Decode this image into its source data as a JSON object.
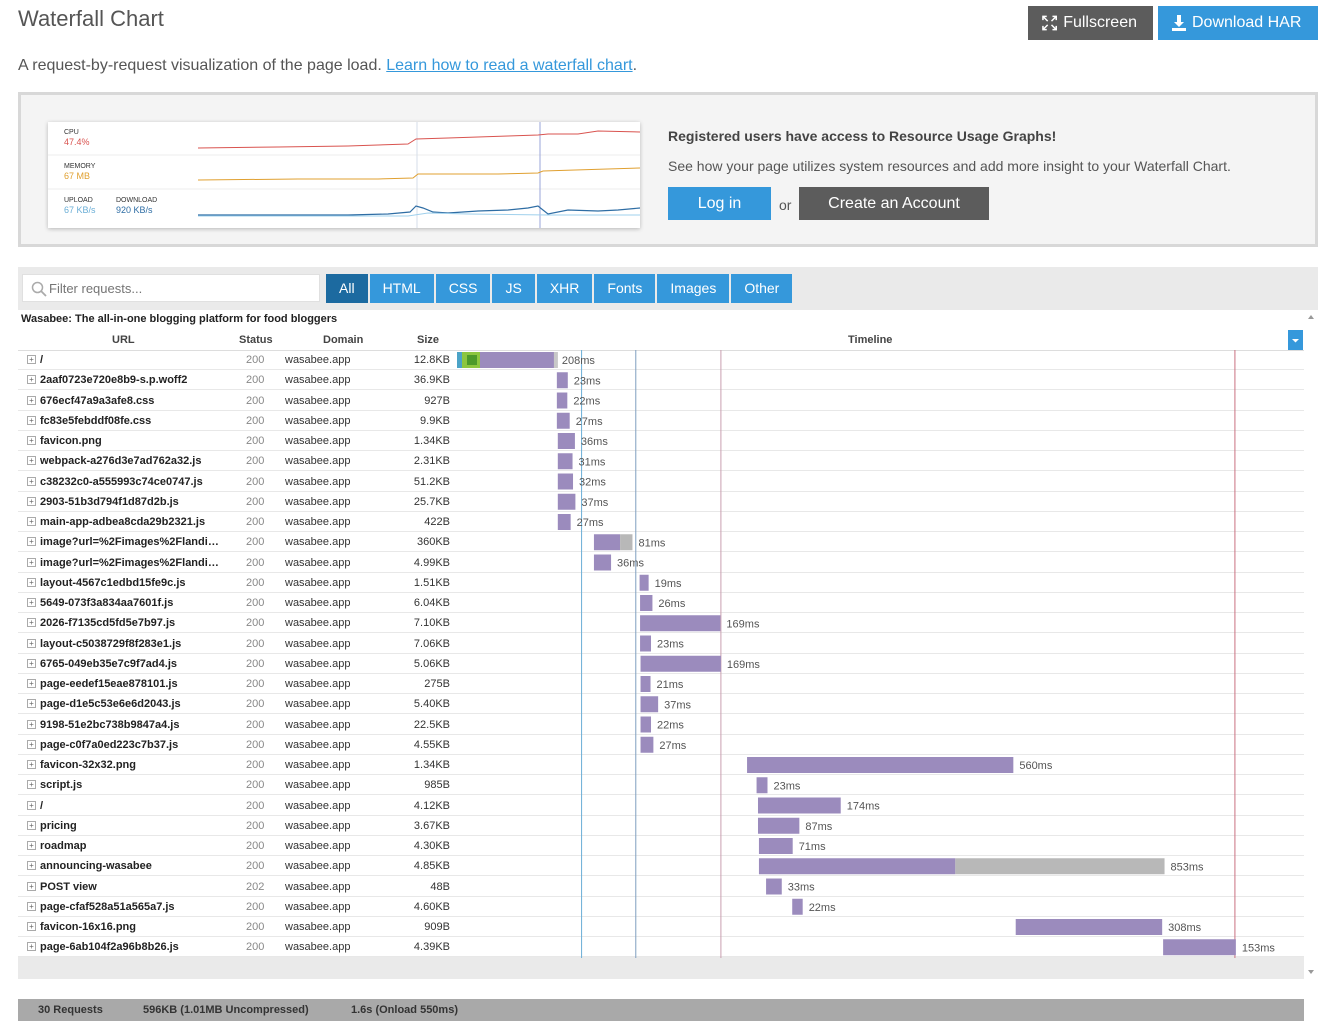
{
  "header": {
    "title": "Waterfall Chart",
    "fullscreen_label": "Fullscreen",
    "download_label": "Download HAR"
  },
  "subtitle": {
    "text": "A request-by-request visualization of the page load. ",
    "link": "Learn how to read a waterfall chart",
    "end": "."
  },
  "promo": {
    "graph": {
      "cpu_label": "CPU",
      "cpu_value": "47.4%",
      "memory_label": "MEMORY",
      "memory_value": "67 MB",
      "upload_label": "UPLOAD",
      "upload_value": "67 KB/s",
      "download_label": "DOWNLOAD",
      "download_value": "920 KB/s"
    },
    "heading": "Registered users have access to Resource Usage Graphs!",
    "text": "See how your page utilizes system resources and add more insight to your Waterfall Chart.",
    "login_label": "Log in",
    "or_label": "or",
    "create_label": "Create an Account"
  },
  "filter": {
    "placeholder": "Filter requests..."
  },
  "tabs": [
    "All",
    "HTML",
    "CSS",
    "JS",
    "XHR",
    "Fonts",
    "Images",
    "Other"
  ],
  "active_tab": "All",
  "table": {
    "site_title": "Wasabee: The all-in-one blogging platform for food bloggers",
    "columns": {
      "url": "URL",
      "status": "Status",
      "domain": "Domain",
      "size": "Size",
      "timeline": "Timeline"
    },
    "rows": [
      {
        "url": "/",
        "status": "200",
        "domain": "wasabee.app",
        "size": "12.8KB",
        "start": 0,
        "dur": 208,
        "wait": 0,
        "label": "208ms",
        "first": true
      },
      {
        "url": "2aaf0723e720e8b9-s.p.woff2",
        "status": "200",
        "domain": "wasabee.app",
        "size": "36.9KB",
        "start": 210,
        "dur": 23,
        "wait": 0,
        "label": "23ms"
      },
      {
        "url": "676ecf47a9a3afe8.css",
        "status": "200",
        "domain": "wasabee.app",
        "size": "927B",
        "start": 210,
        "dur": 22,
        "wait": 0,
        "label": "22ms"
      },
      {
        "url": "fc83e5febddf08fe.css",
        "status": "200",
        "domain": "wasabee.app",
        "size": "9.9KB",
        "start": 210,
        "dur": 27,
        "wait": 0,
        "label": "27ms"
      },
      {
        "url": "favicon.png",
        "status": "200",
        "domain": "wasabee.app",
        "size": "1.34KB",
        "start": 212,
        "dur": 36,
        "wait": 0,
        "label": "36ms"
      },
      {
        "url": "webpack-a276d3e7ad762a32.js",
        "status": "200",
        "domain": "wasabee.app",
        "size": "2.31KB",
        "start": 212,
        "dur": 31,
        "wait": 0,
        "label": "31ms"
      },
      {
        "url": "c38232c0-a555993c74ce0747.js",
        "status": "200",
        "domain": "wasabee.app",
        "size": "51.2KB",
        "start": 212,
        "dur": 32,
        "wait": 0,
        "label": "32ms"
      },
      {
        "url": "2903-51b3d794f1d87d2b.js",
        "status": "200",
        "domain": "wasabee.app",
        "size": "25.7KB",
        "start": 212,
        "dur": 37,
        "wait": 0,
        "label": "37ms"
      },
      {
        "url": "main-app-adbea8cda29b2321.js",
        "status": "200",
        "domain": "wasabee.app",
        "size": "422B",
        "start": 212,
        "dur": 27,
        "wait": 0,
        "label": "27ms"
      },
      {
        "url": "image?url=%2Fimages%2Flanding...",
        "status": "200",
        "domain": "wasabee.app",
        "size": "360KB",
        "start": 288,
        "dur": 55,
        "wait": 26,
        "label": "81ms"
      },
      {
        "url": "image?url=%2Fimages%2Flanding...",
        "status": "200",
        "domain": "wasabee.app",
        "size": "4.99KB",
        "start": 288,
        "dur": 36,
        "wait": 0,
        "label": "36ms"
      },
      {
        "url": "layout-4567c1edbd15fe9c.js",
        "status": "200",
        "domain": "wasabee.app",
        "size": "1.51KB",
        "start": 384,
        "dur": 19,
        "wait": 0,
        "label": "19ms"
      },
      {
        "url": "5649-073f3a834aa7601f.js",
        "status": "200",
        "domain": "wasabee.app",
        "size": "6.04KB",
        "start": 385,
        "dur": 26,
        "wait": 0,
        "label": "26ms"
      },
      {
        "url": "2026-f7135cd5fd5e7b97.js",
        "status": "200",
        "domain": "wasabee.app",
        "size": "7.10KB",
        "start": 385,
        "dur": 169,
        "wait": 0,
        "label": "169ms"
      },
      {
        "url": "layout-c5038729f8f283e1.js",
        "status": "200",
        "domain": "wasabee.app",
        "size": "7.06KB",
        "start": 385,
        "dur": 23,
        "wait": 0,
        "label": "23ms"
      },
      {
        "url": "6765-049eb35e7c9f7ad4.js",
        "status": "200",
        "domain": "wasabee.app",
        "size": "5.06KB",
        "start": 386,
        "dur": 169,
        "wait": 0,
        "label": "169ms"
      },
      {
        "url": "page-eedef15eae878101.js",
        "status": "200",
        "domain": "wasabee.app",
        "size": "275B",
        "start": 386,
        "dur": 21,
        "wait": 0,
        "label": "21ms"
      },
      {
        "url": "page-d1e5c53e6e6d2043.js",
        "status": "200",
        "domain": "wasabee.app",
        "size": "5.40KB",
        "start": 386,
        "dur": 37,
        "wait": 0,
        "label": "37ms"
      },
      {
        "url": "9198-51e2bc738b9847a4.js",
        "status": "200",
        "domain": "wasabee.app",
        "size": "22.5KB",
        "start": 386,
        "dur": 22,
        "wait": 0,
        "label": "22ms"
      },
      {
        "url": "page-c0f7a0ed223c7b37.js",
        "status": "200",
        "domain": "wasabee.app",
        "size": "4.55KB",
        "start": 386,
        "dur": 27,
        "wait": 0,
        "label": "27ms"
      },
      {
        "url": "favicon-32x32.png",
        "status": "200",
        "domain": "wasabee.app",
        "size": "1.34KB",
        "start": 610,
        "dur": 560,
        "wait": 0,
        "label": "560ms"
      },
      {
        "url": "script.js",
        "status": "200",
        "domain": "wasabee.app",
        "size": "985B",
        "start": 630,
        "dur": 23,
        "wait": 0,
        "label": "23ms"
      },
      {
        "url": "/",
        "status": "200",
        "domain": "wasabee.app",
        "size": "4.12KB",
        "start": 633,
        "dur": 174,
        "wait": 0,
        "label": "174ms"
      },
      {
        "url": "pricing",
        "status": "200",
        "domain": "wasabee.app",
        "size": "3.67KB",
        "start": 633,
        "dur": 87,
        "wait": 0,
        "label": "87ms"
      },
      {
        "url": "roadmap",
        "status": "200",
        "domain": "wasabee.app",
        "size": "4.30KB",
        "start": 635,
        "dur": 71,
        "wait": 0,
        "label": "71ms"
      },
      {
        "url": "announcing-wasabee",
        "status": "200",
        "domain": "wasabee.app",
        "size": "4.85KB",
        "start": 635,
        "dur": 413,
        "wait": 440,
        "label": "853ms"
      },
      {
        "url": "POST view",
        "status": "202",
        "domain": "wasabee.app",
        "size": "48B",
        "start": 650,
        "dur": 33,
        "wait": 0,
        "label": "33ms"
      },
      {
        "url": "page-cfaf528a51a565a7.js",
        "status": "200",
        "domain": "wasabee.app",
        "size": "4.60KB",
        "start": 705,
        "dur": 22,
        "wait": 0,
        "label": "22ms"
      },
      {
        "url": "favicon-16x16.png",
        "status": "200",
        "domain": "wasabee.app",
        "size": "909B",
        "start": 1175,
        "dur": 308,
        "wait": 0,
        "label": "308ms"
      },
      {
        "url": "page-6ab104f2a96b8b26.js",
        "status": "200",
        "domain": "wasabee.app",
        "size": "4.39KB",
        "start": 1485,
        "dur": 153,
        "wait": 0,
        "label": "153ms"
      }
    ]
  },
  "footer": {
    "requests": "30 Requests",
    "size": "596KB  (1.01MB Uncompressed)",
    "time": "1.6s  (Onload 550ms)"
  },
  "colors": {
    "accent": "#3598db",
    "dark_button": "#5c5c5c",
    "bar": "#9b8bbd",
    "wait": "#b8b8b8",
    "cpu": "#d9534f",
    "memory": "#e0a030",
    "network": "#2e6da4"
  }
}
